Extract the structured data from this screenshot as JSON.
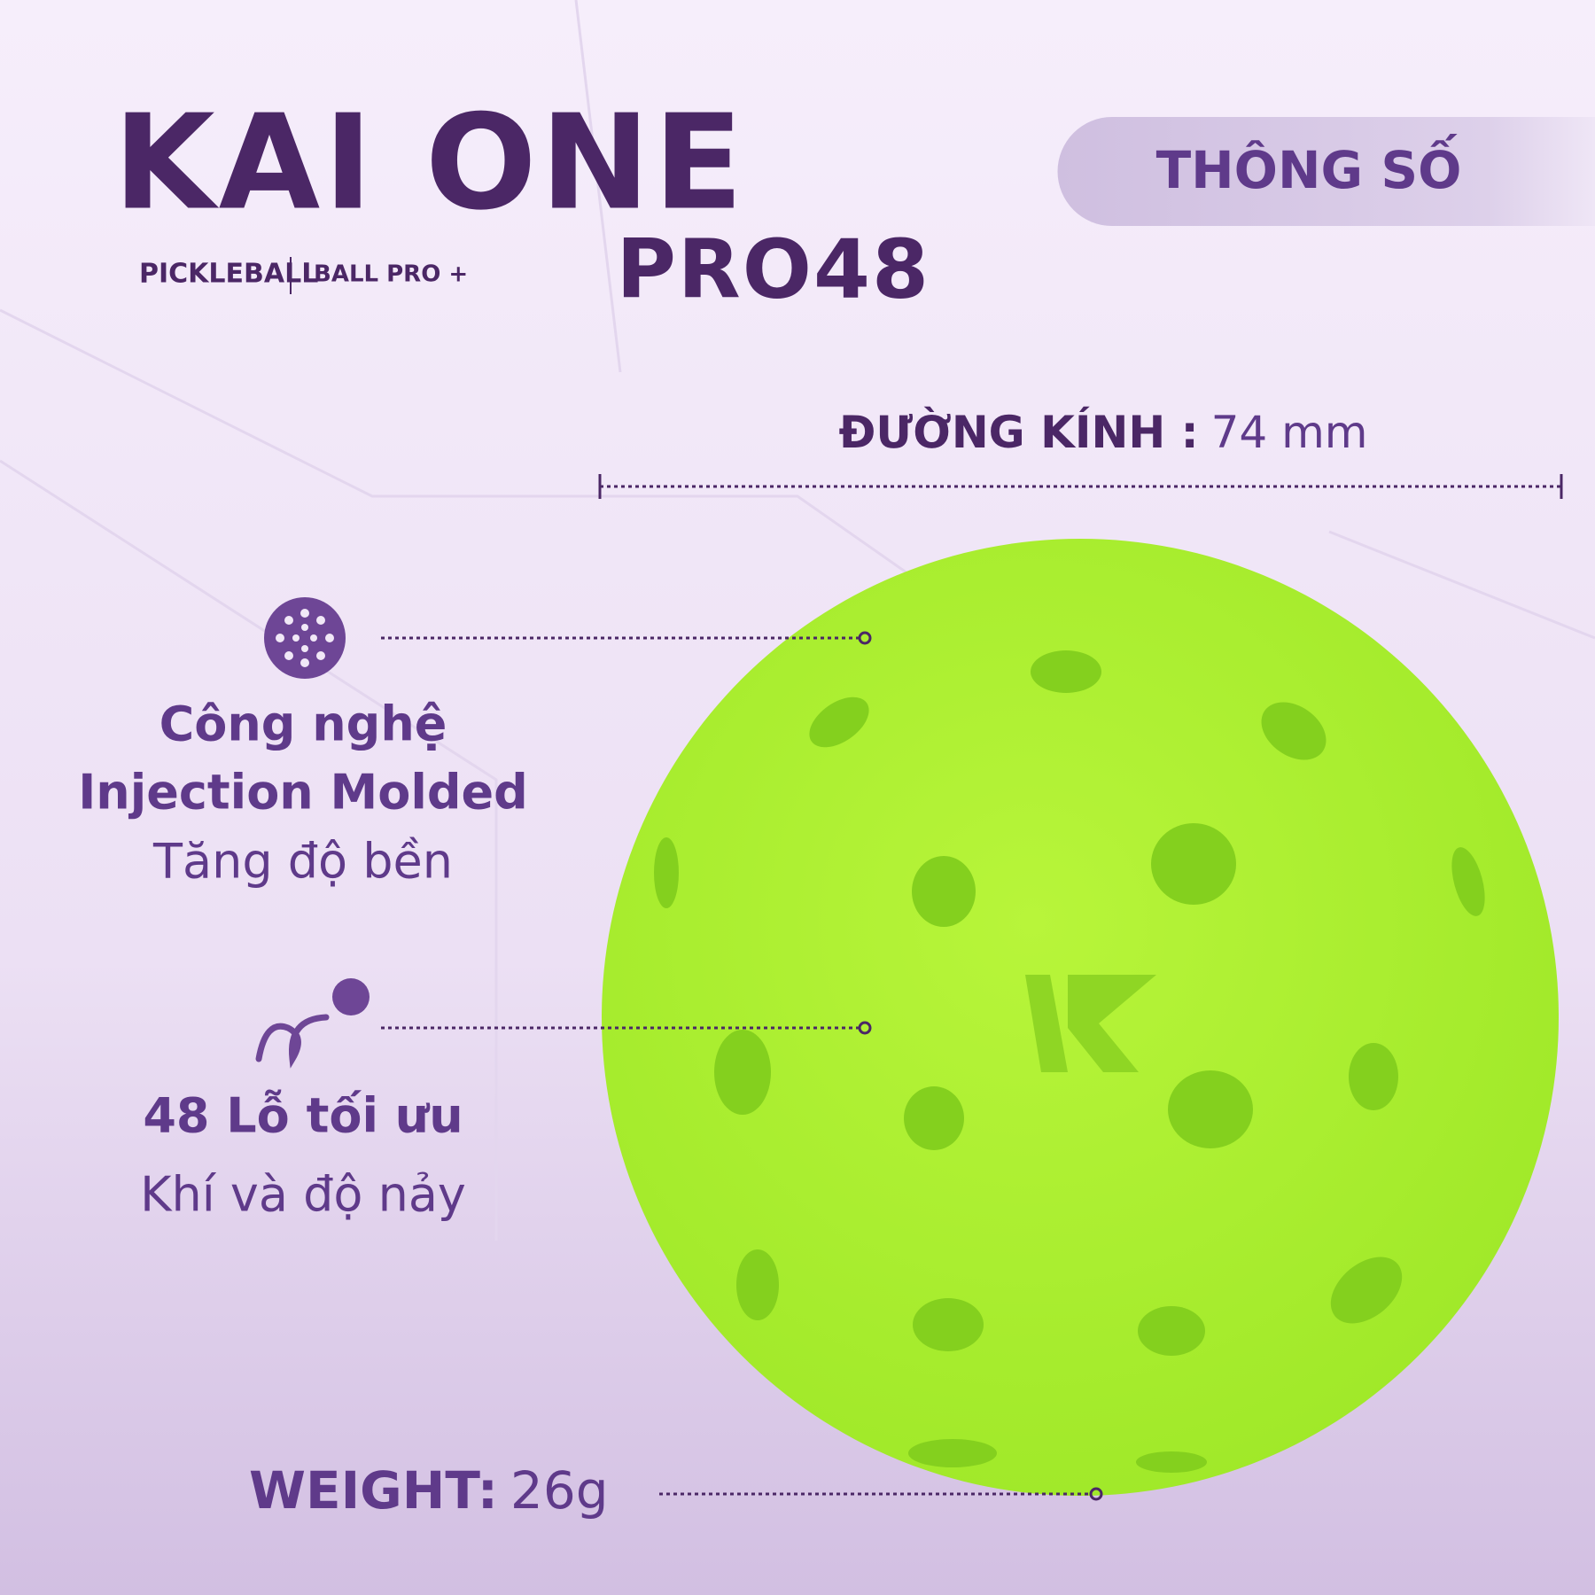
{
  "brand": {
    "title": "KAI ONE",
    "model": "PRO48",
    "line1": "PICKLEBALL",
    "line2": "BALL PRO +"
  },
  "badge": "THÔNG SỐ",
  "diameter": {
    "label": "ĐƯỜNG KÍNH :",
    "value": "74 mm"
  },
  "features": [
    {
      "lines": [
        "Công nghệ",
        "Injection Molded"
      ],
      "note": "Tăng độ bền"
    },
    {
      "lines": [
        "48 Lỗ tối ưu"
      ],
      "note": "Khí và độ nảy"
    }
  ],
  "weight": {
    "label": "WEIGHT:",
    "value": "26g"
  }
}
